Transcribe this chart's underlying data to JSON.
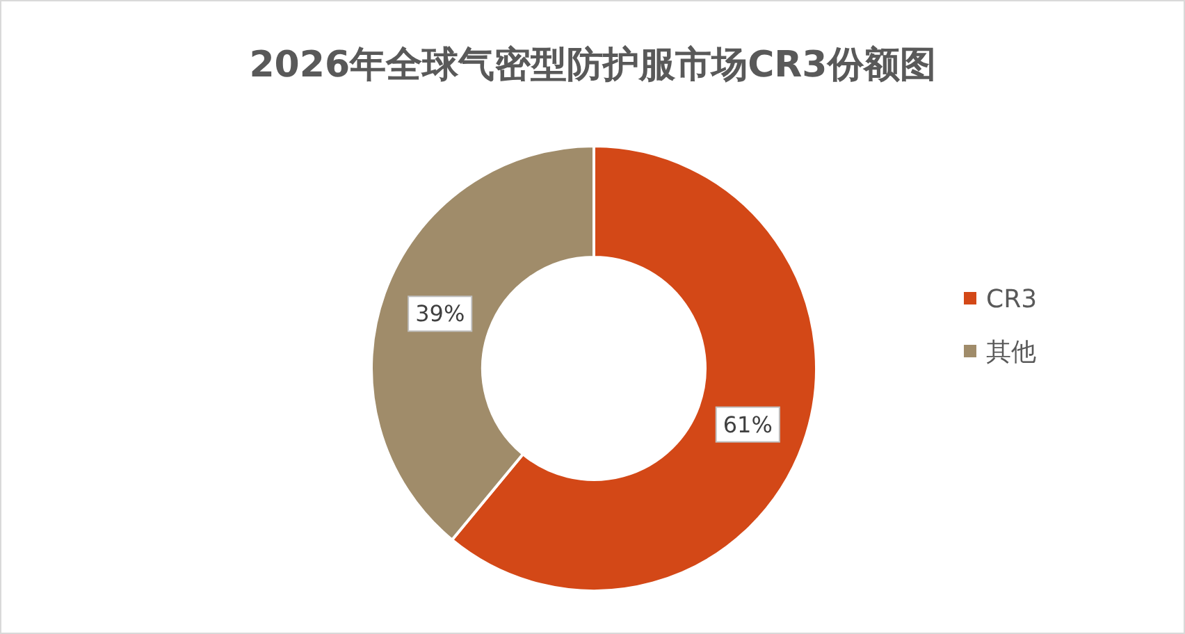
{
  "chart_data": {
    "type": "donut",
    "title": "2026年全球气密型防护服市场CR3份额图",
    "categories": [
      "CR3",
      "其他"
    ],
    "values": [
      61,
      39
    ],
    "colors": [
      "#d34817",
      "#a08c6a"
    ],
    "value_labels": [
      "61%",
      "39%"
    ],
    "legend": "right"
  }
}
